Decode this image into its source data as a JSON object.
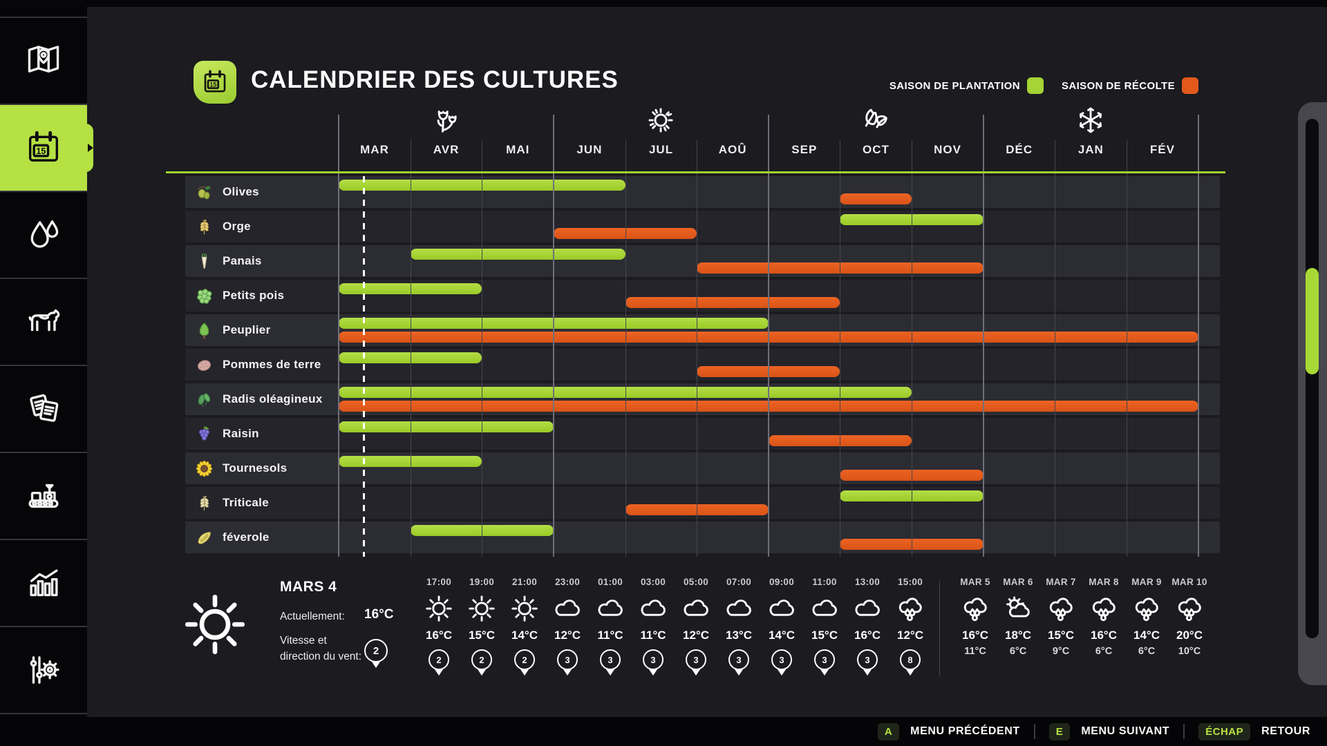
{
  "app": {
    "title": "CALENDRIER DES CULTURES",
    "calendar_icon_day": "15"
  },
  "legend": {
    "planting_label": "SAISON DE PLANTATION",
    "harvest_label": "SAISON DE RÉCOLTE",
    "planting_color": "#a6d335",
    "harvest_color": "#e3591c"
  },
  "sidebar": {
    "items": [
      {
        "name": "map",
        "icon": "map-icon",
        "active": false
      },
      {
        "name": "calendar",
        "icon": "calendar-icon",
        "active": true
      },
      {
        "name": "moisture",
        "icon": "drops-icon",
        "active": false
      },
      {
        "name": "animals",
        "icon": "cow-icon",
        "active": false
      },
      {
        "name": "contracts",
        "icon": "documents-icon",
        "active": false
      },
      {
        "name": "production",
        "icon": "production-icon",
        "active": false
      },
      {
        "name": "statistics",
        "icon": "stats-icon",
        "active": false
      },
      {
        "name": "settings",
        "icon": "settings-icon",
        "active": false
      }
    ]
  },
  "chart": {
    "type": "gantt",
    "months": [
      "MAR",
      "AVR",
      "MAI",
      "JUN",
      "JUL",
      "AOÛ",
      "SEP",
      "OCT",
      "NOV",
      "DÉC",
      "JAN",
      "FÉV"
    ],
    "seasons": [
      {
        "icon": "spring-flowers-icon",
        "month_index": 1
      },
      {
        "icon": "summer-sun-icon",
        "month_index": 4
      },
      {
        "icon": "autumn-leaves-icon",
        "month_index": 7
      },
      {
        "icon": "winter-snowflake-icon",
        "month_index": 10
      }
    ],
    "current_date_fraction_of_first_month": 0.34,
    "crops": [
      {
        "name": "Olives",
        "icon": "crop-olives",
        "plant": [
          0,
          3
        ],
        "harvest": [
          7,
          7
        ]
      },
      {
        "name": "Orge",
        "icon": "crop-barley",
        "plant": [
          7,
          8
        ],
        "harvest": [
          3,
          4
        ]
      },
      {
        "name": "Panais",
        "icon": "crop-parsnip",
        "plant": [
          1,
          3
        ],
        "harvest": [
          5,
          8
        ]
      },
      {
        "name": "Petits pois",
        "icon": "crop-peas",
        "plant": [
          0,
          1
        ],
        "harvest": [
          4,
          6
        ]
      },
      {
        "name": "Peuplier",
        "icon": "crop-poplar",
        "plant": [
          0,
          5
        ],
        "harvest": [
          0,
          11
        ]
      },
      {
        "name": "Pommes de terre",
        "icon": "crop-potato",
        "plant": [
          0,
          1
        ],
        "harvest": [
          5,
          6
        ]
      },
      {
        "name": "Radis oléagineux",
        "icon": "crop-radish",
        "plant": [
          0,
          7
        ],
        "harvest": [
          0,
          11
        ]
      },
      {
        "name": "Raisin",
        "icon": "crop-grapes",
        "plant": [
          0,
          2
        ],
        "harvest": [
          6,
          7
        ]
      },
      {
        "name": "Tournesols",
        "icon": "crop-sunflower",
        "plant": [
          0,
          1
        ],
        "harvest": [
          7,
          8
        ]
      },
      {
        "name": "Triticale",
        "icon": "crop-triticale",
        "plant": [
          7,
          8
        ],
        "harvest": [
          4,
          5
        ]
      },
      {
        "name": "féverole",
        "icon": "crop-fababean",
        "plant": [
          1,
          2
        ],
        "harvest": [
          7,
          8
        ]
      }
    ]
  },
  "weather": {
    "current": {
      "date": "MARS 4",
      "icon": "sun-icon",
      "now_label": "Actuellement:",
      "now_temp": "16°C",
      "wind_label_line1": "Vitesse et",
      "wind_label_line2": "direction du vent:",
      "wind_value": "2"
    },
    "hourly": [
      {
        "time": "17:00",
        "icon": "sun-icon",
        "temp": "16°C",
        "wind": "2"
      },
      {
        "time": "19:00",
        "icon": "sun-icon",
        "temp": "15°C",
        "wind": "2"
      },
      {
        "time": "21:00",
        "icon": "sun-icon",
        "temp": "14°C",
        "wind": "2"
      },
      {
        "time": "23:00",
        "icon": "cloud-icon",
        "temp": "12°C",
        "wind": "3"
      },
      {
        "time": "01:00",
        "icon": "cloud-icon",
        "temp": "11°C",
        "wind": "3"
      },
      {
        "time": "03:00",
        "icon": "cloud-icon",
        "temp": "11°C",
        "wind": "3"
      },
      {
        "time": "05:00",
        "icon": "cloud-icon",
        "temp": "12°C",
        "wind": "3"
      },
      {
        "time": "07:00",
        "icon": "cloud-icon",
        "temp": "13°C",
        "wind": "3"
      },
      {
        "time": "09:00",
        "icon": "cloud-icon",
        "temp": "14°C",
        "wind": "3"
      },
      {
        "time": "11:00",
        "icon": "cloud-icon",
        "temp": "15°C",
        "wind": "3"
      },
      {
        "time": "13:00",
        "icon": "cloud-icon",
        "temp": "16°C",
        "wind": "3"
      },
      {
        "time": "15:00",
        "icon": "rain-icon",
        "temp": "12°C",
        "wind": "8"
      }
    ],
    "daily": [
      {
        "date": "MAR 5",
        "icon": "rain-icon",
        "high": "16°C",
        "low": "11°C"
      },
      {
        "date": "MAR 6",
        "icon": "partly-sunny-icon",
        "high": "18°C",
        "low": "6°C"
      },
      {
        "date": "MAR 7",
        "icon": "rain-icon",
        "high": "15°C",
        "low": "9°C"
      },
      {
        "date": "MAR 8",
        "icon": "rain-icon",
        "high": "16°C",
        "low": "6°C"
      },
      {
        "date": "MAR 9",
        "icon": "rain-icon",
        "high": "14°C",
        "low": "6°C"
      },
      {
        "date": "MAR 10",
        "icon": "rain-icon",
        "high": "20°C",
        "low": "10°C"
      }
    ]
  },
  "footer": {
    "items": [
      {
        "key": "A",
        "label": "MENU PRÉCÉDENT"
      },
      {
        "key": "E",
        "label": "MENU SUIVANT"
      },
      {
        "key": "ÉCHAP",
        "label": "RETOUR"
      }
    ]
  }
}
